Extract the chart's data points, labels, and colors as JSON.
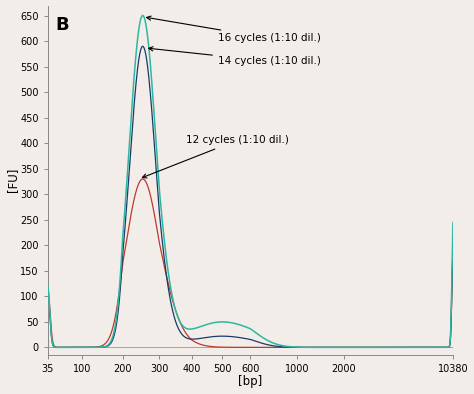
{
  "panel_label": "B",
  "xlabel": "[bp]",
  "ylabel": "[FU]",
  "ylim": [
    -15,
    670
  ],
  "yticks": [
    0,
    50,
    100,
    150,
    200,
    250,
    300,
    350,
    400,
    450,
    500,
    550,
    600,
    650
  ],
  "xtick_positions": [
    35,
    100,
    200,
    300,
    400,
    500,
    600,
    1000,
    2000,
    10380
  ],
  "xtick_labels": [
    "35",
    "100",
    "200",
    "300",
    "400",
    "500",
    "600",
    "1000",
    "2000",
    "10380"
  ],
  "colors": {
    "16_cycles": "#2db8a0",
    "14_cycles": "#1a3a6b",
    "12_cycles": "#c0392b"
  },
  "background": "#f2ede8",
  "ann_16": "16 cycles (1:10 dil.)",
  "ann_14": "14 cycles (1:10 dil.)",
  "ann_12": "12 cycles (1:10 dil.)"
}
